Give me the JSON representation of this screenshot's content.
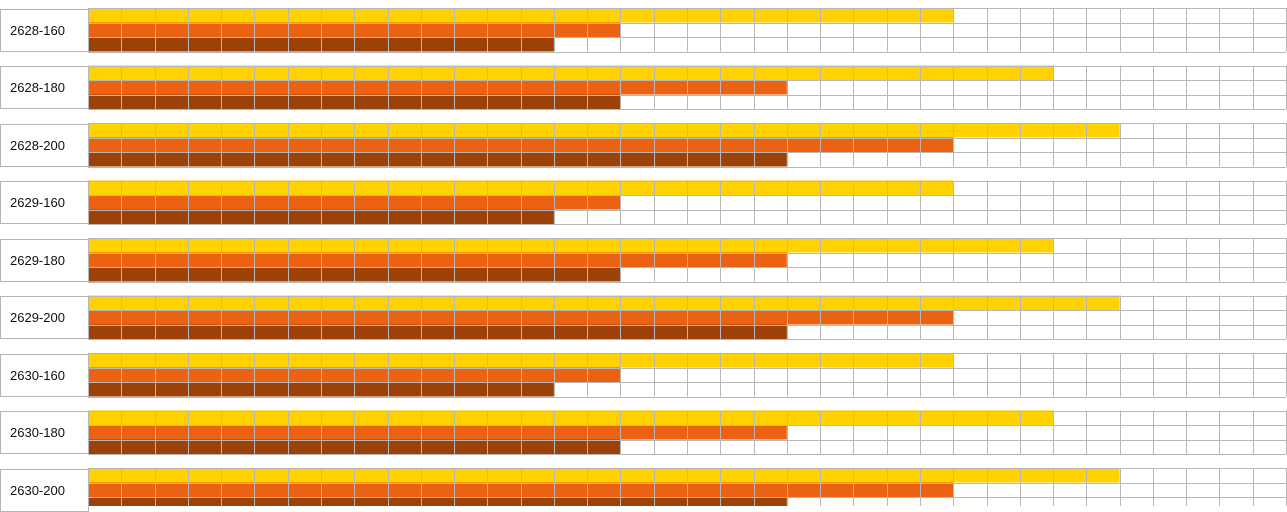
{
  "chart_data": {
    "type": "bar",
    "orientation": "horizontal",
    "categories": [
      "2628-160",
      "2628-180",
      "2628-200",
      "2629-160",
      "2629-180",
      "2629-200",
      "2630-160",
      "2630-180",
      "2630-200"
    ],
    "series": [
      {
        "values": [
          26,
          29,
          31,
          26,
          29,
          31,
          26,
          29,
          31
        ]
      },
      {
        "values": [
          16,
          21,
          26,
          16,
          21,
          26,
          16,
          21,
          26
        ]
      },
      {
        "values": [
          14,
          16,
          21,
          14,
          16,
          21,
          14,
          16,
          21
        ]
      }
    ],
    "xlim": [
      0,
      36
    ],
    "grid": true,
    "colors": [
      "#FFD200",
      "#EA6212",
      "#9C4209"
    ],
    "grid_color": "#b7b7b7"
  }
}
